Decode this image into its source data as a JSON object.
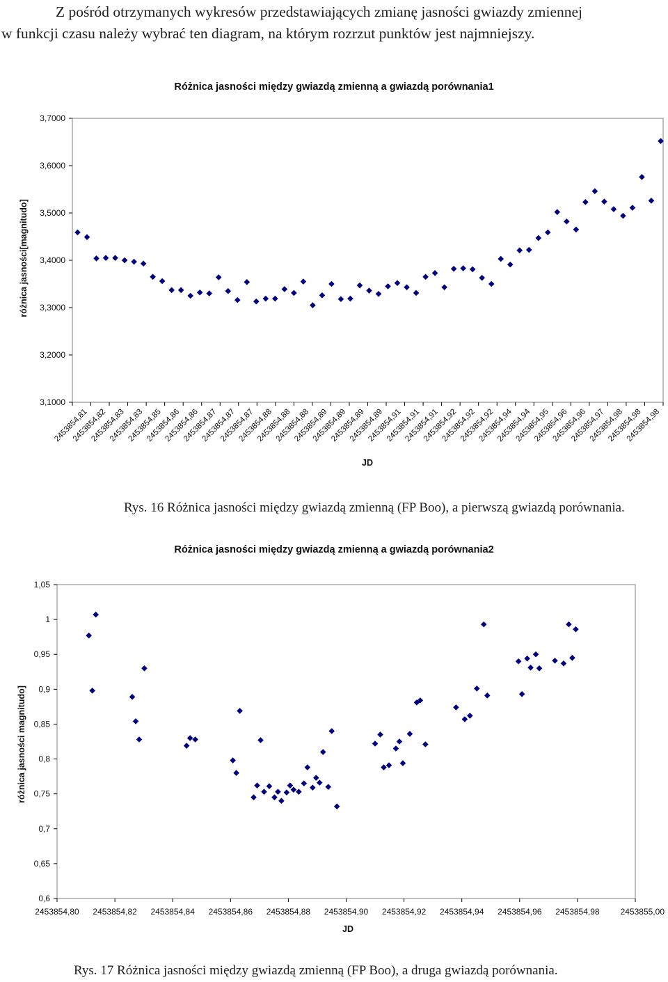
{
  "intro": {
    "line1": "Z pośród otrzymanych wykresów przedstawiających zmianę jasności gwiazdy zmiennej",
    "line2": "w funkcji czasu należy wybrać ten diagram, na którym rozrzut punktów jest najmniejszy."
  },
  "captions": {
    "fig16": "Rys. 16 Różnica jasności między gwiazdą zmienną (FP Boo), a pierwszą gwiazdą porównania.",
    "fig17": "Rys. 17 Różnica jasności między gwiazdą zmienną (FP Boo), a druga gwiazdą porównania."
  },
  "chart_data": [
    {
      "type": "scatter",
      "title": "Różnica jasności między gwiazdą zmienną a gwiazdą porównania1",
      "xlabel": "JD",
      "ylabel": "różnica jasności[magnitudo]",
      "ylim": [
        3.1,
        3.7
      ],
      "yticks": [
        "3,7000",
        "3,6000",
        "3,5000",
        "3,4000",
        "3,3000",
        "3,2000",
        "3,1000"
      ],
      "xticks": [
        "2453854,81",
        "2453854,82",
        "2453854,83",
        "2453854,83",
        "2453854,85",
        "2453854,86",
        "2453854,86",
        "2453854,87",
        "2453854,87",
        "2453854,87",
        "2453854,88",
        "2453854,88",
        "2453854,88",
        "2453854,89",
        "2453854,89",
        "2453854,89",
        "2453854,89",
        "2453854,91",
        "2453854,91",
        "2453854,91",
        "2453854,92",
        "2453854,92",
        "2453854,92",
        "2453854,94",
        "2453854,94",
        "2453854,95",
        "2453854,96",
        "2453854,96",
        "2453854,97",
        "2453854,98",
        "2453854,98",
        "2453854,98"
      ],
      "marker_color": "#00007f",
      "grid": false,
      "y": [
        3.459,
        3.449,
        3.404,
        3.405,
        3.405,
        3.4,
        3.397,
        3.393,
        3.365,
        3.356,
        3.337,
        3.337,
        3.325,
        3.332,
        3.33,
        3.364,
        3.335,
        3.316,
        3.354,
        3.313,
        3.319,
        3.319,
        3.339,
        3.331,
        3.355,
        3.305,
        3.326,
        3.35,
        3.318,
        3.319,
        3.347,
        3.336,
        3.329,
        3.345,
        3.352,
        3.343,
        3.331,
        3.365,
        3.373,
        3.343,
        3.382,
        3.383,
        3.381,
        3.363,
        3.35,
        3.403,
        3.391,
        3.421,
        3.422,
        3.447,
        3.459,
        3.502,
        3.482,
        3.465,
        3.523,
        3.546,
        3.524,
        3.508,
        3.494,
        3.511,
        3.576,
        3.526,
        3.652
      ]
    },
    {
      "type": "scatter",
      "title": "Różnica jasności między gwiazdą zmienną a gwiazdą porównania2",
      "xlabel": "JD",
      "ylabel": "różnica jasności magnitudo]",
      "xlim": [
        2453854.8,
        2453855.0
      ],
      "ylim": [
        0.6,
        1.05
      ],
      "xticks": [
        "2453854,80",
        "2453854,82",
        "2453854,84",
        "2453854,86",
        "2453854,88",
        "2453854,90",
        "2453854,92",
        "2453854,94",
        "2453854,96",
        "2453854,98",
        "2453855,00"
      ],
      "yticks": [
        "1,05",
        "1",
        "0,95",
        "0,9",
        "0,85",
        "0,8",
        "0,75",
        "0,7",
        "0,65",
        "0,6"
      ],
      "marker_color": "#00007f",
      "grid": false,
      "points": [
        [
          2453854.811,
          0.977
        ],
        [
          2453854.8122,
          0.898
        ],
        [
          2453854.8134,
          1.007
        ],
        [
          2453854.826,
          0.889
        ],
        [
          2453854.8272,
          0.854
        ],
        [
          2453854.8284,
          0.828
        ],
        [
          2453854.8302,
          0.93
        ],
        [
          2453854.8448,
          0.819
        ],
        [
          2453854.846,
          0.83
        ],
        [
          2453854.8478,
          0.828
        ],
        [
          2453854.8608,
          0.798
        ],
        [
          2453854.862,
          0.78
        ],
        [
          2453854.8632,
          0.869
        ],
        [
          2453854.868,
          0.745
        ],
        [
          2453854.8692,
          0.762
        ],
        [
          2453854.8704,
          0.827
        ],
        [
          2453854.8716,
          0.753
        ],
        [
          2453854.8734,
          0.761
        ],
        [
          2453854.8752,
          0.745
        ],
        [
          2453854.8764,
          0.753
        ],
        [
          2453854.8776,
          0.74
        ],
        [
          2453854.8794,
          0.752
        ],
        [
          2453854.8806,
          0.762
        ],
        [
          2453854.8818,
          0.756
        ],
        [
          2453854.8836,
          0.753
        ],
        [
          2453854.8854,
          0.765
        ],
        [
          2453854.8866,
          0.788
        ],
        [
          2453854.8884,
          0.759
        ],
        [
          2453854.8896,
          0.773
        ],
        [
          2453854.8908,
          0.766
        ],
        [
          2453854.892,
          0.81
        ],
        [
          2453854.8938,
          0.76
        ],
        [
          2453854.895,
          0.84
        ],
        [
          2453854.8968,
          0.732
        ],
        [
          2453854.91,
          0.822
        ],
        [
          2453854.9118,
          0.835
        ],
        [
          2453854.913,
          0.788
        ],
        [
          2453854.9148,
          0.791
        ],
        [
          2453854.9172,
          0.815
        ],
        [
          2453854.9184,
          0.825
        ],
        [
          2453854.9196,
          0.794
        ],
        [
          2453854.922,
          0.836
        ],
        [
          2453854.9244,
          0.881
        ],
        [
          2453854.9256,
          0.884
        ],
        [
          2453854.9274,
          0.821
        ],
        [
          2453854.938,
          0.874
        ],
        [
          2453854.941,
          0.857
        ],
        [
          2453854.9428,
          0.862
        ],
        [
          2453854.9452,
          0.901
        ],
        [
          2453854.9476,
          0.993
        ],
        [
          2453854.9488,
          0.891
        ],
        [
          2453854.9596,
          0.94
        ],
        [
          2453854.9608,
          0.893
        ],
        [
          2453854.9626,
          0.944
        ],
        [
          2453854.9638,
          0.931
        ],
        [
          2453854.9656,
          0.95
        ],
        [
          2453854.9668,
          0.93
        ],
        [
          2453854.9722,
          0.941
        ],
        [
          2453854.9752,
          0.937
        ],
        [
          2453854.977,
          0.993
        ],
        [
          2453854.9782,
          0.945
        ],
        [
          2453854.9794,
          0.986
        ]
      ]
    }
  ]
}
